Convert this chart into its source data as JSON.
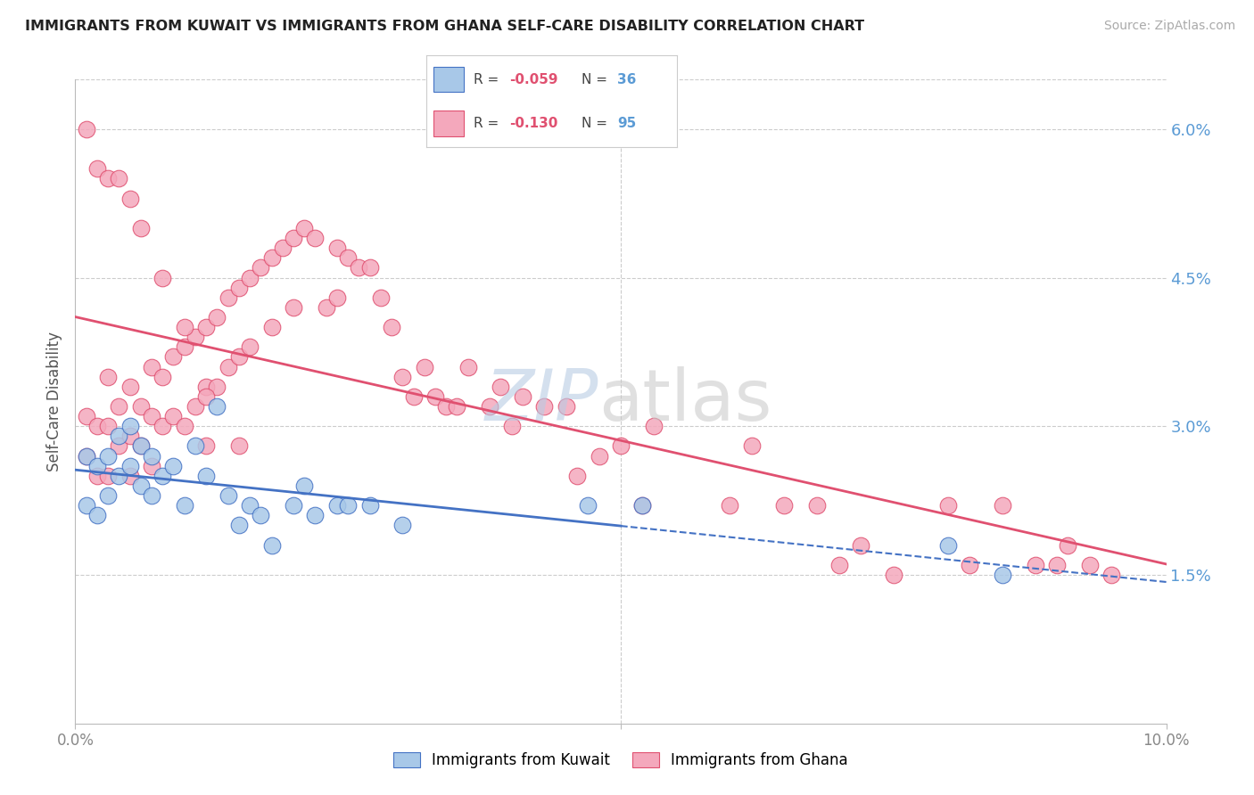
{
  "title": "IMMIGRANTS FROM KUWAIT VS IMMIGRANTS FROM GHANA SELF-CARE DISABILITY CORRELATION CHART",
  "source": "Source: ZipAtlas.com",
  "ylabel": "Self-Care Disability",
  "xlim": [
    0.0,
    0.1
  ],
  "ylim": [
    0.0,
    0.065
  ],
  "kuwait_color": "#a8c8e8",
  "ghana_color": "#f4a8bc",
  "kuwait_line_color": "#4472c4",
  "ghana_line_color": "#e05070",
  "legend_r_kuwait": "-0.059",
  "legend_n_kuwait": "36",
  "legend_r_ghana": "-0.130",
  "legend_n_ghana": "95",
  "background_color": "#ffffff",
  "grid_color": "#cccccc",
  "kuwait_scatter_x": [
    0.001,
    0.001,
    0.002,
    0.002,
    0.003,
    0.003,
    0.004,
    0.004,
    0.005,
    0.005,
    0.006,
    0.006,
    0.007,
    0.007,
    0.008,
    0.009,
    0.01,
    0.011,
    0.012,
    0.013,
    0.014,
    0.015,
    0.016,
    0.017,
    0.018,
    0.02,
    0.021,
    0.022,
    0.024,
    0.025,
    0.027,
    0.03,
    0.047,
    0.052,
    0.08,
    0.085
  ],
  "kuwait_scatter_y": [
    0.027,
    0.022,
    0.026,
    0.021,
    0.027,
    0.023,
    0.029,
    0.025,
    0.03,
    0.026,
    0.028,
    0.024,
    0.027,
    0.023,
    0.025,
    0.026,
    0.022,
    0.028,
    0.025,
    0.032,
    0.023,
    0.02,
    0.022,
    0.021,
    0.018,
    0.022,
    0.024,
    0.021,
    0.022,
    0.022,
    0.022,
    0.02,
    0.022,
    0.022,
    0.018,
    0.015
  ],
  "ghana_scatter_x": [
    0.001,
    0.001,
    0.002,
    0.002,
    0.003,
    0.003,
    0.003,
    0.004,
    0.004,
    0.005,
    0.005,
    0.005,
    0.006,
    0.006,
    0.007,
    0.007,
    0.007,
    0.008,
    0.008,
    0.009,
    0.009,
    0.01,
    0.01,
    0.011,
    0.011,
    0.012,
    0.012,
    0.012,
    0.013,
    0.013,
    0.014,
    0.014,
    0.015,
    0.015,
    0.016,
    0.016,
    0.017,
    0.018,
    0.018,
    0.019,
    0.02,
    0.02,
    0.021,
    0.022,
    0.023,
    0.024,
    0.024,
    0.025,
    0.026,
    0.027,
    0.028,
    0.029,
    0.03,
    0.031,
    0.032,
    0.033,
    0.034,
    0.035,
    0.036,
    0.038,
    0.039,
    0.04,
    0.041,
    0.043,
    0.045,
    0.046,
    0.048,
    0.05,
    0.052,
    0.053,
    0.06,
    0.062,
    0.065,
    0.068,
    0.07,
    0.072,
    0.075,
    0.08,
    0.082,
    0.085,
    0.088,
    0.09,
    0.091,
    0.093,
    0.095,
    0.001,
    0.002,
    0.003,
    0.004,
    0.005,
    0.006,
    0.008,
    0.01,
    0.012,
    0.015
  ],
  "ghana_scatter_y": [
    0.031,
    0.027,
    0.03,
    0.025,
    0.035,
    0.03,
    0.025,
    0.032,
    0.028,
    0.034,
    0.029,
    0.025,
    0.032,
    0.028,
    0.036,
    0.031,
    0.026,
    0.035,
    0.03,
    0.037,
    0.031,
    0.038,
    0.03,
    0.039,
    0.032,
    0.04,
    0.034,
    0.028,
    0.041,
    0.034,
    0.043,
    0.036,
    0.044,
    0.037,
    0.045,
    0.038,
    0.046,
    0.047,
    0.04,
    0.048,
    0.049,
    0.042,
    0.05,
    0.049,
    0.042,
    0.048,
    0.043,
    0.047,
    0.046,
    0.046,
    0.043,
    0.04,
    0.035,
    0.033,
    0.036,
    0.033,
    0.032,
    0.032,
    0.036,
    0.032,
    0.034,
    0.03,
    0.033,
    0.032,
    0.032,
    0.025,
    0.027,
    0.028,
    0.022,
    0.03,
    0.022,
    0.028,
    0.022,
    0.022,
    0.016,
    0.018,
    0.015,
    0.022,
    0.016,
    0.022,
    0.016,
    0.016,
    0.018,
    0.016,
    0.015,
    0.06,
    0.056,
    0.055,
    0.055,
    0.053,
    0.05,
    0.045,
    0.04,
    0.033,
    0.028
  ]
}
